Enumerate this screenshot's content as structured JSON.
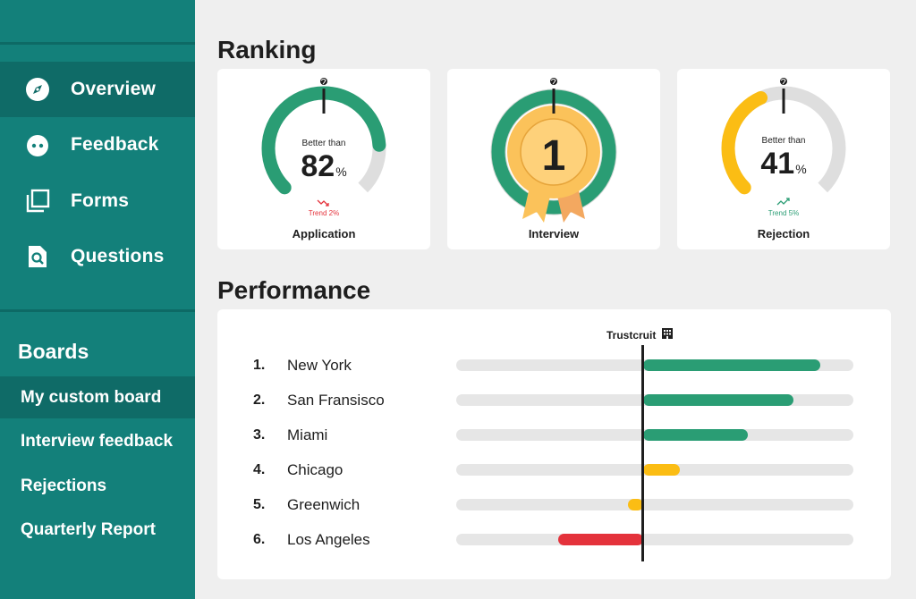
{
  "sidebar": {
    "nav": [
      {
        "label": "Overview",
        "icon": "compass-icon",
        "active": true
      },
      {
        "label": "Feedback",
        "icon": "smiley-face-icon",
        "active": false
      },
      {
        "label": "Forms",
        "icon": "stacked-pages-icon",
        "active": false
      },
      {
        "label": "Questions",
        "icon": "document-search-icon",
        "active": false
      }
    ],
    "boards_title": "Boards",
    "boards": [
      {
        "label": "My custom board",
        "active": true
      },
      {
        "label": "Interview feedback",
        "active": false
      },
      {
        "label": "Rejections",
        "active": false
      },
      {
        "label": "Quarterly Report",
        "active": false
      }
    ]
  },
  "ranking": {
    "title": "Ranking",
    "cards": [
      {
        "label": "Application",
        "better_than": "Better than",
        "value": "82",
        "unit": "%",
        "trend": "Trend 2%",
        "trend_direction": "down",
        "gauge_fraction": 0.82,
        "color": "#2a9d74"
      },
      {
        "label": "Interview",
        "rank": "1",
        "gauge_fraction": 1.0,
        "color": "#2a9d74"
      },
      {
        "label": "Rejection",
        "better_than": "Better than",
        "value": "41",
        "unit": "%",
        "trend": "Trend 5%",
        "trend_direction": "up",
        "gauge_fraction": 0.41,
        "color": "#fbbd14"
      }
    ]
  },
  "performance": {
    "title": "Performance",
    "reference_label": "Trustcruit",
    "reference_icon": "building-icon",
    "rows": [
      {
        "rank": "1.",
        "city": "New York",
        "value": 0.86,
        "color": "#2a9d74"
      },
      {
        "rank": "2.",
        "city": "San Fransisco",
        "value": 0.73,
        "color": "#2a9d74"
      },
      {
        "rank": "3.",
        "city": "Miami",
        "value": 0.51,
        "color": "#2a9d74"
      },
      {
        "rank": "4.",
        "city": "Chicago",
        "value": 0.18,
        "color": "#fbbd14"
      },
      {
        "rank": "5.",
        "city": "Greenwich",
        "value": -0.08,
        "color": "#fbbd14"
      },
      {
        "rank": "6.",
        "city": "Los Angeles",
        "value": -0.46,
        "color": "#e4323b"
      }
    ]
  }
}
